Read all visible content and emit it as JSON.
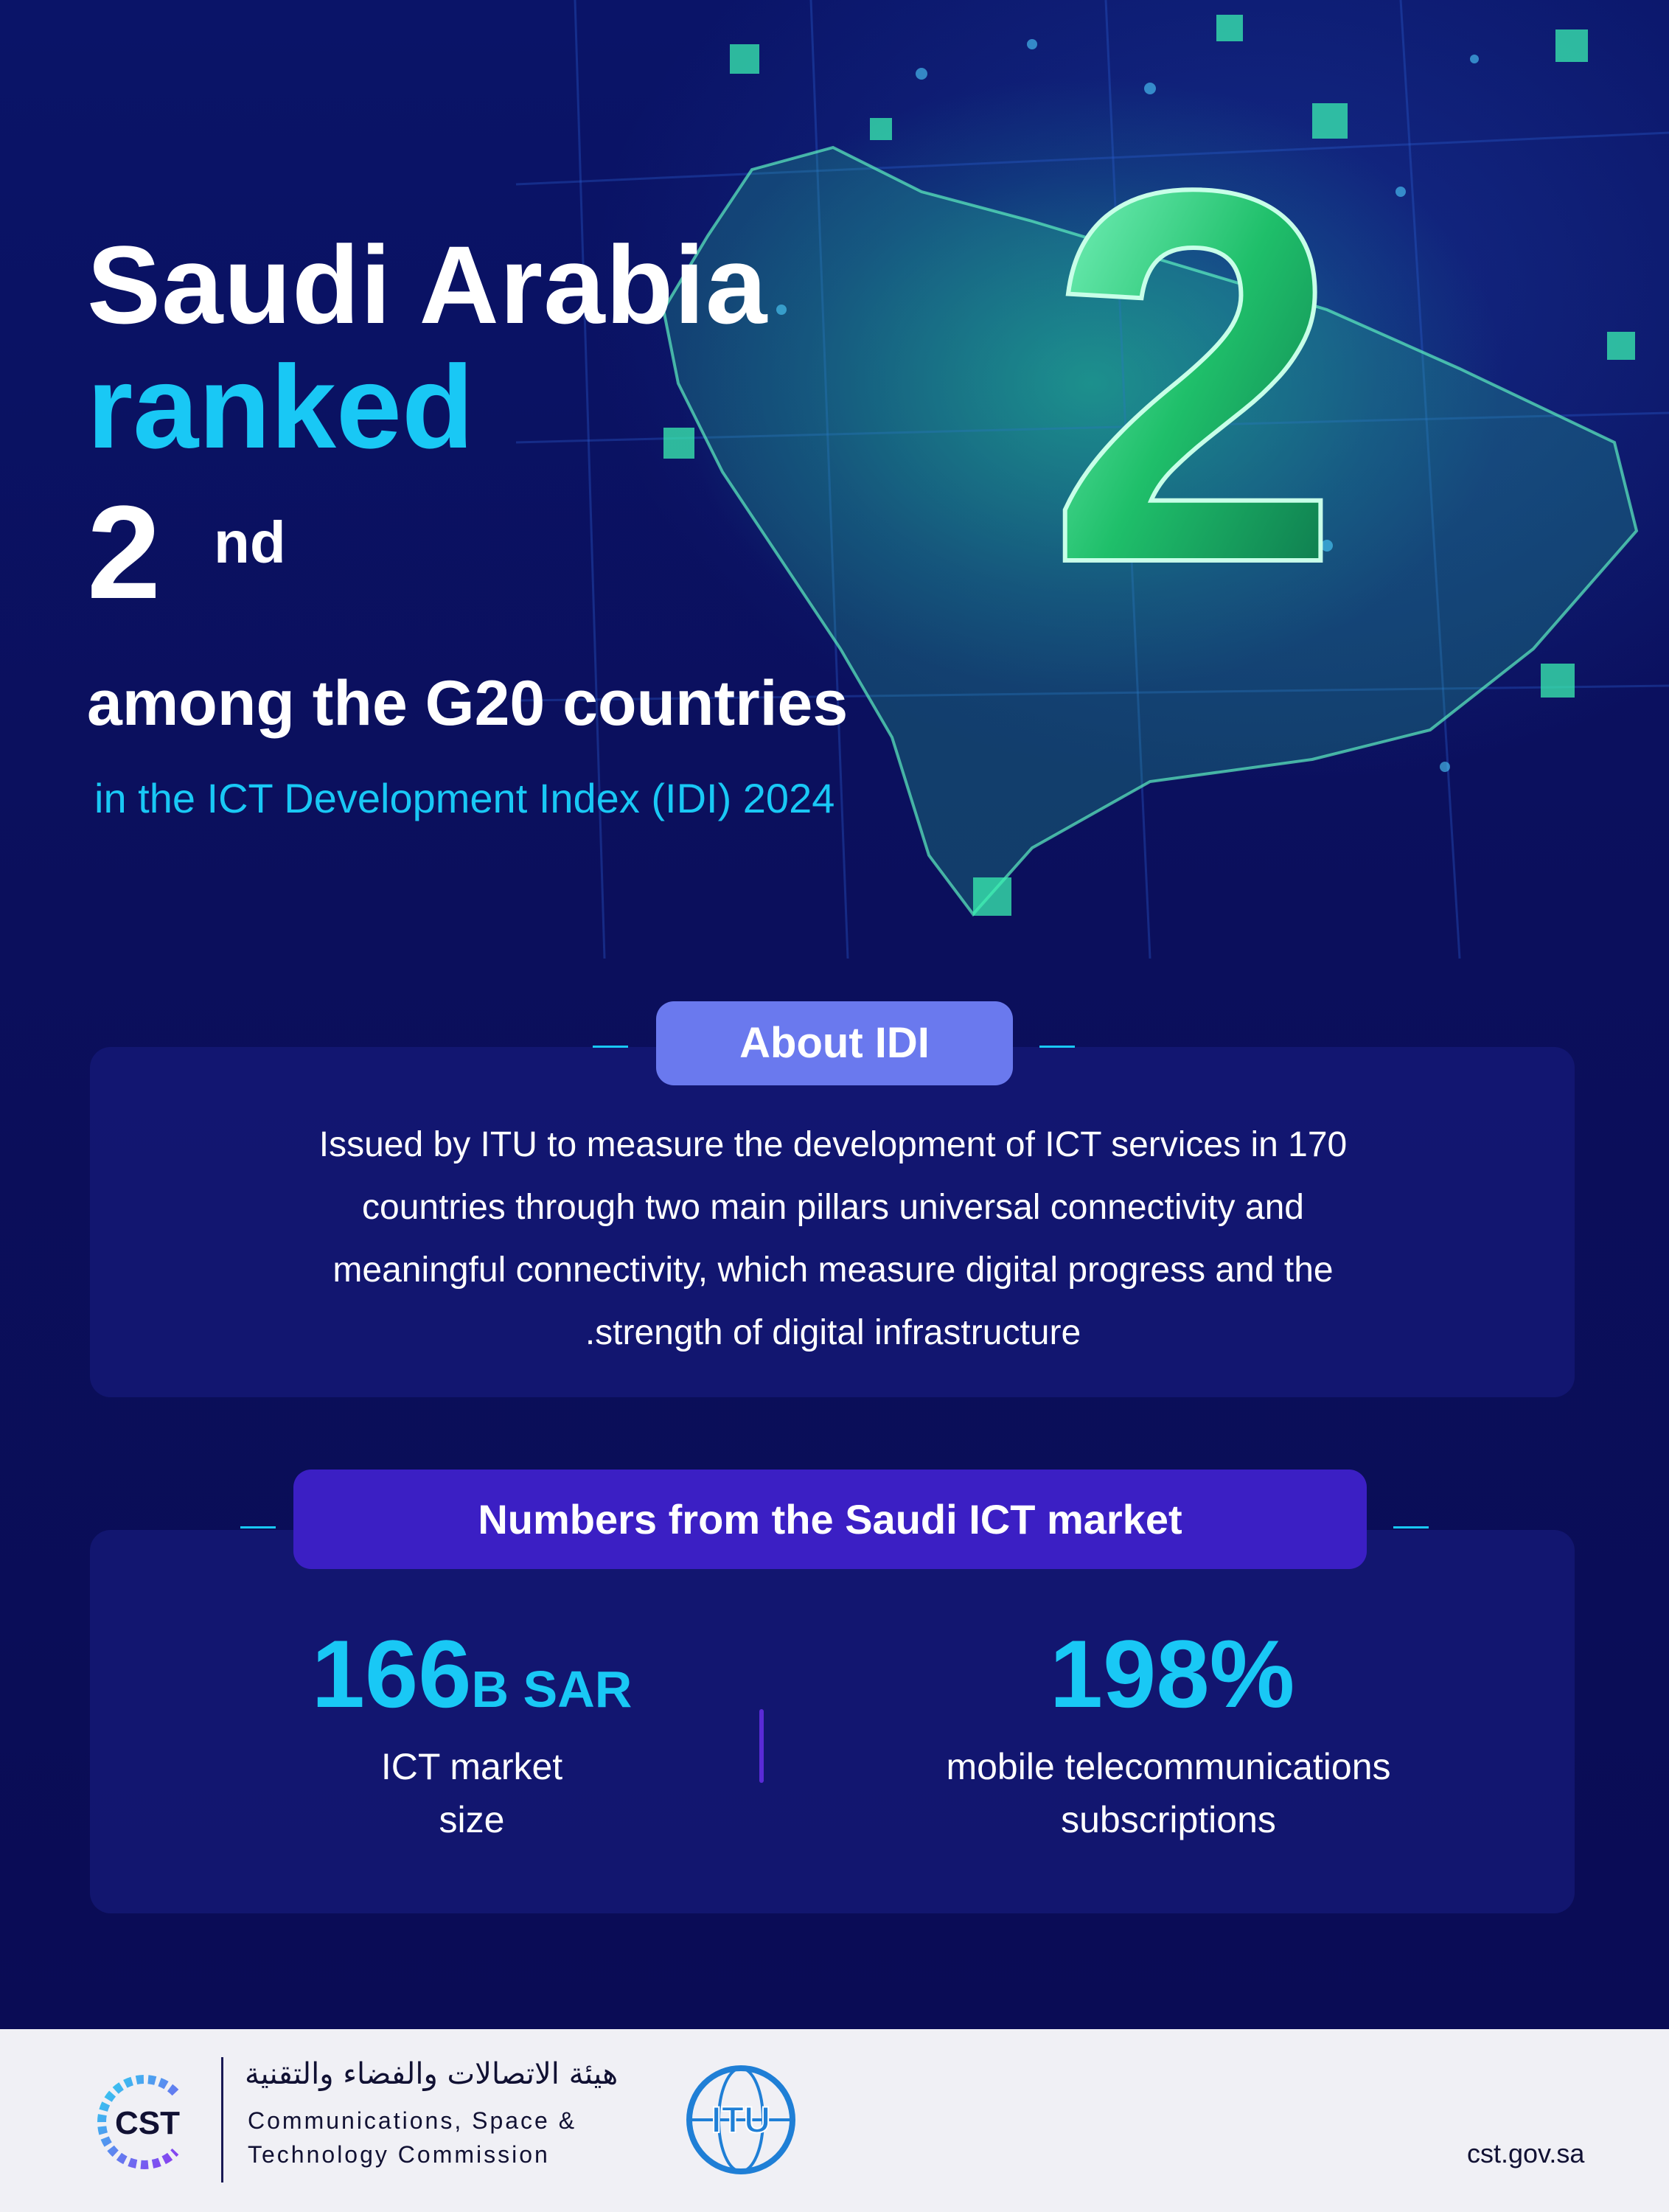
{
  "hero": {
    "line1": "Saudi Arabia",
    "line2": "ranked",
    "rank_number": "2",
    "rank_suffix": "nd",
    "line3": "among the G20 countries",
    "subtitle": "in the ICT Development Index (IDI) 2024",
    "big_numeral": "2"
  },
  "about": {
    "heading": "About IDI",
    "lines": [
      "Issued by ITU to measure the development of ICT services in 170",
      "countries through two main pillars universal connectivity and",
      "meaningful connectivity, which measure digital progress and the",
      ".strength of digital infrastructure"
    ]
  },
  "numbers": {
    "heading": "Numbers from the Saudi ICT market",
    "stats": [
      {
        "value": "166",
        "unit": "B SAR",
        "label_lines": [
          "ICT market",
          "size"
        ]
      },
      {
        "value": "198%",
        "unit": "",
        "label_lines": [
          "mobile telecommunications",
          "subscriptions"
        ]
      }
    ]
  },
  "footer": {
    "cst_logo_text": "CST",
    "org_arabic": "هيئة الاتصالات والفضاء والتقنية",
    "org_english_line1": "Communications, Space &",
    "org_english_line2": "Technology Commission",
    "itu_logo_text": "ITU",
    "website": "cst.gov.sa"
  },
  "colors": {
    "background": "#0b0f5c",
    "accent_cyan": "#19c8f5",
    "accent_green": "#2ee08a",
    "pill_about": "#6a79ee",
    "pill_numbers": "#3b1fc4"
  }
}
